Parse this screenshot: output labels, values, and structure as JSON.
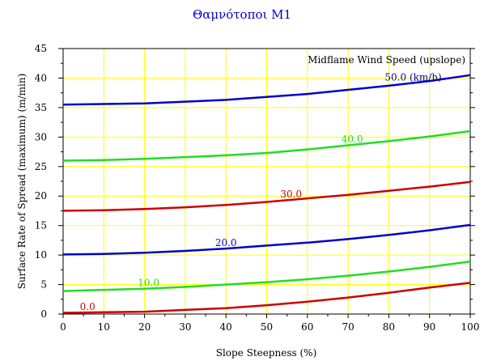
{
  "chart_data": {
    "type": "line",
    "title": "Θαμνότοποι Μ1",
    "xlabel": "Slope Steepness (%)",
    "ylabel": "Surface Rate of Spread (maximum) (m/min)",
    "xlim": [
      0,
      100
    ],
    "ylim": [
      0,
      45
    ],
    "xticks": [
      0,
      10,
      20,
      30,
      40,
      50,
      60,
      70,
      80,
      90,
      100
    ],
    "yticks": [
      0,
      5,
      10,
      15,
      20,
      25,
      30,
      35,
      40,
      45
    ],
    "grid": true,
    "grid_color": "#ffff00",
    "legend_title": "Midflame Wind Speed (upslope)",
    "legend_position": "top-right",
    "x": [
      0,
      10,
      20,
      30,
      40,
      50,
      60,
      70,
      80,
      90,
      100
    ],
    "series": [
      {
        "name": "0.0",
        "color": "#cc0000",
        "label_x": 6,
        "values": [
          0.2,
          0.3,
          0.4,
          0.7,
          1.0,
          1.5,
          2.1,
          2.8,
          3.6,
          4.5,
          5.3
        ]
      },
      {
        "name": "10.0",
        "color": "#22dd22",
        "label_x": 21,
        "values": [
          3.9,
          4.1,
          4.3,
          4.6,
          5.0,
          5.4,
          5.9,
          6.5,
          7.2,
          8.0,
          8.9
        ]
      },
      {
        "name": "20.0",
        "color": "#0000cc",
        "label_x": 40,
        "values": [
          10.1,
          10.2,
          10.4,
          10.7,
          11.1,
          11.6,
          12.1,
          12.7,
          13.4,
          14.2,
          15.1
        ]
      },
      {
        "name": "30.0",
        "color": "#cc0000",
        "label_x": 56,
        "values": [
          17.5,
          17.6,
          17.8,
          18.1,
          18.5,
          19.0,
          19.6,
          20.2,
          20.9,
          21.6,
          22.4
        ]
      },
      {
        "name": "40.0",
        "color": "#22dd22",
        "label_x": 71,
        "values": [
          26.0,
          26.1,
          26.3,
          26.6,
          26.9,
          27.3,
          27.9,
          28.6,
          29.3,
          30.1,
          31.0
        ]
      },
      {
        "name": "50.0 (km/h)",
        "color": "#0000cc",
        "label_x": 86,
        "values": [
          35.5,
          35.6,
          35.7,
          36.0,
          36.3,
          36.8,
          37.3,
          38.0,
          38.7,
          39.5,
          40.5
        ]
      }
    ]
  }
}
